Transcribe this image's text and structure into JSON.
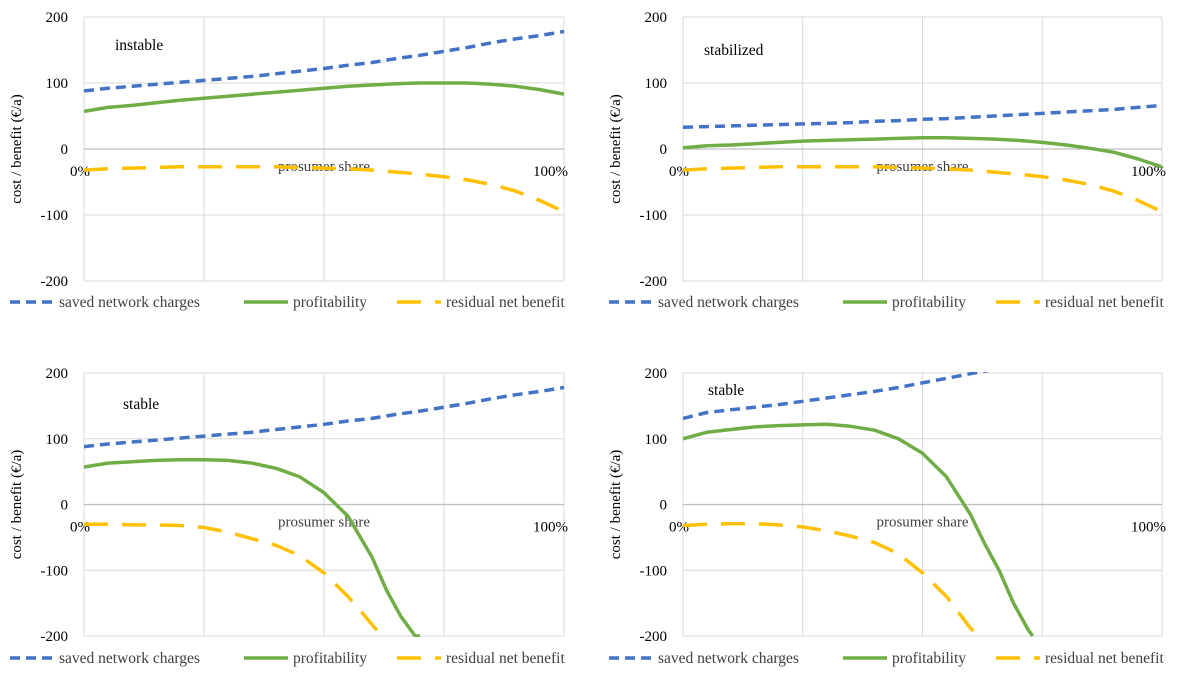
{
  "colors": {
    "saved": "#4472C4",
    "profit": "#70AD47",
    "residual": "#FFC000",
    "grid": "#D9D9D9"
  },
  "chart_data": [
    {
      "type": "line",
      "title": "instable",
      "xlabel": "prosumer share",
      "ylabel": "cost / benefit (€/a)",
      "x_ticks": [
        "0%",
        "100%"
      ],
      "y_ticks": [
        "200",
        "100",
        "0",
        "-100",
        "-200"
      ],
      "xlim": [
        0,
        100
      ],
      "ylim": [
        -200,
        200
      ],
      "grid": true,
      "legend_position": "bottom",
      "x": [
        0,
        5,
        10,
        15,
        20,
        25,
        30,
        35,
        40,
        45,
        50,
        55,
        60,
        65,
        70,
        75,
        80,
        85,
        90,
        95,
        100
      ],
      "series": [
        {
          "name": "saved network charges",
          "values": [
            88,
            92,
            95,
            98,
            101,
            104,
            107,
            110,
            114,
            118,
            122,
            127,
            131,
            137,
            142,
            148,
            154,
            161,
            167,
            172,
            178
          ]
        },
        {
          "name": "profitability",
          "values": [
            57,
            63,
            66,
            70,
            74,
            77,
            80,
            83,
            86,
            89,
            92,
            95,
            97,
            99,
            100,
            100,
            100,
            98,
            95,
            90,
            83
          ]
        },
        {
          "name": "residual net benefit",
          "values": [
            -32,
            -30,
            -29,
            -28,
            -27,
            -27,
            -27,
            -27,
            -27,
            -28,
            -29,
            -30,
            -32,
            -35,
            -38,
            -42,
            -47,
            -54,
            -64,
            -78,
            -95
          ]
        }
      ]
    },
    {
      "type": "line",
      "title": "stabilized",
      "xlabel": "prosumer share",
      "ylabel": "cost / benefit (€/a)",
      "x_ticks": [
        "0%",
        "100%"
      ],
      "y_ticks": [
        "200",
        "100",
        "0",
        "-100",
        "-200"
      ],
      "xlim": [
        0,
        100
      ],
      "ylim": [
        -200,
        200
      ],
      "grid": true,
      "legend_position": "bottom",
      "x": [
        0,
        5,
        10,
        15,
        20,
        25,
        30,
        35,
        40,
        45,
        50,
        55,
        60,
        65,
        70,
        75,
        80,
        85,
        90,
        95,
        100
      ],
      "series": [
        {
          "name": "saved network charges",
          "values": [
            33,
            34,
            35,
            36,
            37,
            38,
            39,
            40,
            42,
            43,
            45,
            46,
            48,
            50,
            52,
            54,
            56,
            58,
            60,
            63,
            66
          ]
        },
        {
          "name": "profitability",
          "values": [
            2,
            5,
            6,
            8,
            10,
            12,
            13,
            14,
            15,
            16,
            17,
            17,
            16,
            15,
            13,
            10,
            6,
            1,
            -5,
            -15,
            -27
          ]
        },
        {
          "name": "residual net benefit",
          "values": [
            -32,
            -30,
            -29,
            -28,
            -27,
            -27,
            -27,
            -27,
            -27,
            -28,
            -29,
            -30,
            -32,
            -35,
            -38,
            -42,
            -47,
            -54,
            -64,
            -78,
            -95
          ]
        }
      ]
    },
    {
      "type": "line",
      "title": "stable",
      "xlabel": "prosumer share",
      "ylabel": "cost / benefit (€/a)",
      "x_ticks": [
        "0%",
        "100%"
      ],
      "y_ticks": [
        "200",
        "100",
        "0",
        "-100",
        "-200"
      ],
      "xlim": [
        0,
        100
      ],
      "ylim": [
        -200,
        200
      ],
      "grid": true,
      "legend_position": "bottom",
      "x": [
        0,
        5,
        10,
        15,
        20,
        25,
        30,
        35,
        40,
        45,
        50,
        55,
        60,
        65,
        70,
        75,
        80,
        85,
        90,
        95,
        100
      ],
      "series": [
        {
          "name": "saved network charges",
          "values": [
            88,
            92,
            95,
            98,
            101,
            104,
            107,
            110,
            114,
            118,
            122,
            127,
            131,
            137,
            142,
            148,
            154,
            161,
            167,
            172,
            178
          ]
        },
        {
          "name": "profitability",
          "x": [
            0,
            5,
            10,
            15,
            20,
            25,
            30,
            35,
            40,
            45,
            50,
            55,
            60,
            63,
            66,
            69,
            70
          ],
          "values": [
            57,
            63,
            65,
            67,
            68,
            68,
            67,
            63,
            55,
            42,
            18,
            -18,
            -80,
            -130,
            -170,
            -200,
            -200
          ]
        },
        {
          "name": "residual net benefit",
          "x": [
            0,
            5,
            10,
            15,
            20,
            25,
            30,
            35,
            40,
            45,
            50,
            55,
            58,
            62
          ],
          "values": [
            -30,
            -30,
            -31,
            -31,
            -32,
            -35,
            -42,
            -52,
            -62,
            -78,
            -104,
            -140,
            -165,
            -200
          ]
        }
      ]
    },
    {
      "type": "line",
      "title": "stable",
      "xlabel": "prosumer share",
      "ylabel": "cost / benefit (€/a)",
      "x_ticks": [
        "0%",
        "100%"
      ],
      "y_ticks": [
        "200",
        "100",
        "0",
        "-100",
        "-200"
      ],
      "xlim": [
        0,
        100
      ],
      "ylim": [
        -200,
        200
      ],
      "grid": true,
      "legend_position": "bottom",
      "x": [
        0,
        5,
        10,
        15,
        20,
        25,
        30,
        35,
        40,
        45,
        50,
        55,
        60,
        63,
        66,
        69,
        72,
        73
      ],
      "series": [
        {
          "name": "saved network charges",
          "x": [
            0,
            5,
            10,
            15,
            20,
            25,
            30,
            35,
            40,
            45,
            50,
            55,
            60,
            63,
            66,
            69
          ],
          "values": [
            131,
            140,
            144,
            148,
            152,
            157,
            162,
            167,
            172,
            178,
            185,
            192,
            199,
            203,
            207,
            212
          ]
        },
        {
          "name": "profitability",
          "x": [
            0,
            5,
            10,
            15,
            20,
            25,
            30,
            35,
            40,
            45,
            50,
            55,
            60,
            63,
            66,
            69,
            72,
            73
          ],
          "values": [
            100,
            110,
            114,
            118,
            120,
            121,
            122,
            119,
            113,
            100,
            78,
            42,
            -15,
            -60,
            -100,
            -150,
            -190,
            -200
          ]
        },
        {
          "name": "residual net benefit",
          "x": [
            0,
            5,
            10,
            15,
            20,
            25,
            30,
            35,
            40,
            45,
            50,
            55,
            60,
            63
          ],
          "values": [
            -32,
            -30,
            -29,
            -29,
            -31,
            -34,
            -40,
            -48,
            -58,
            -75,
            -104,
            -140,
            -188,
            -210
          ]
        }
      ]
    }
  ]
}
